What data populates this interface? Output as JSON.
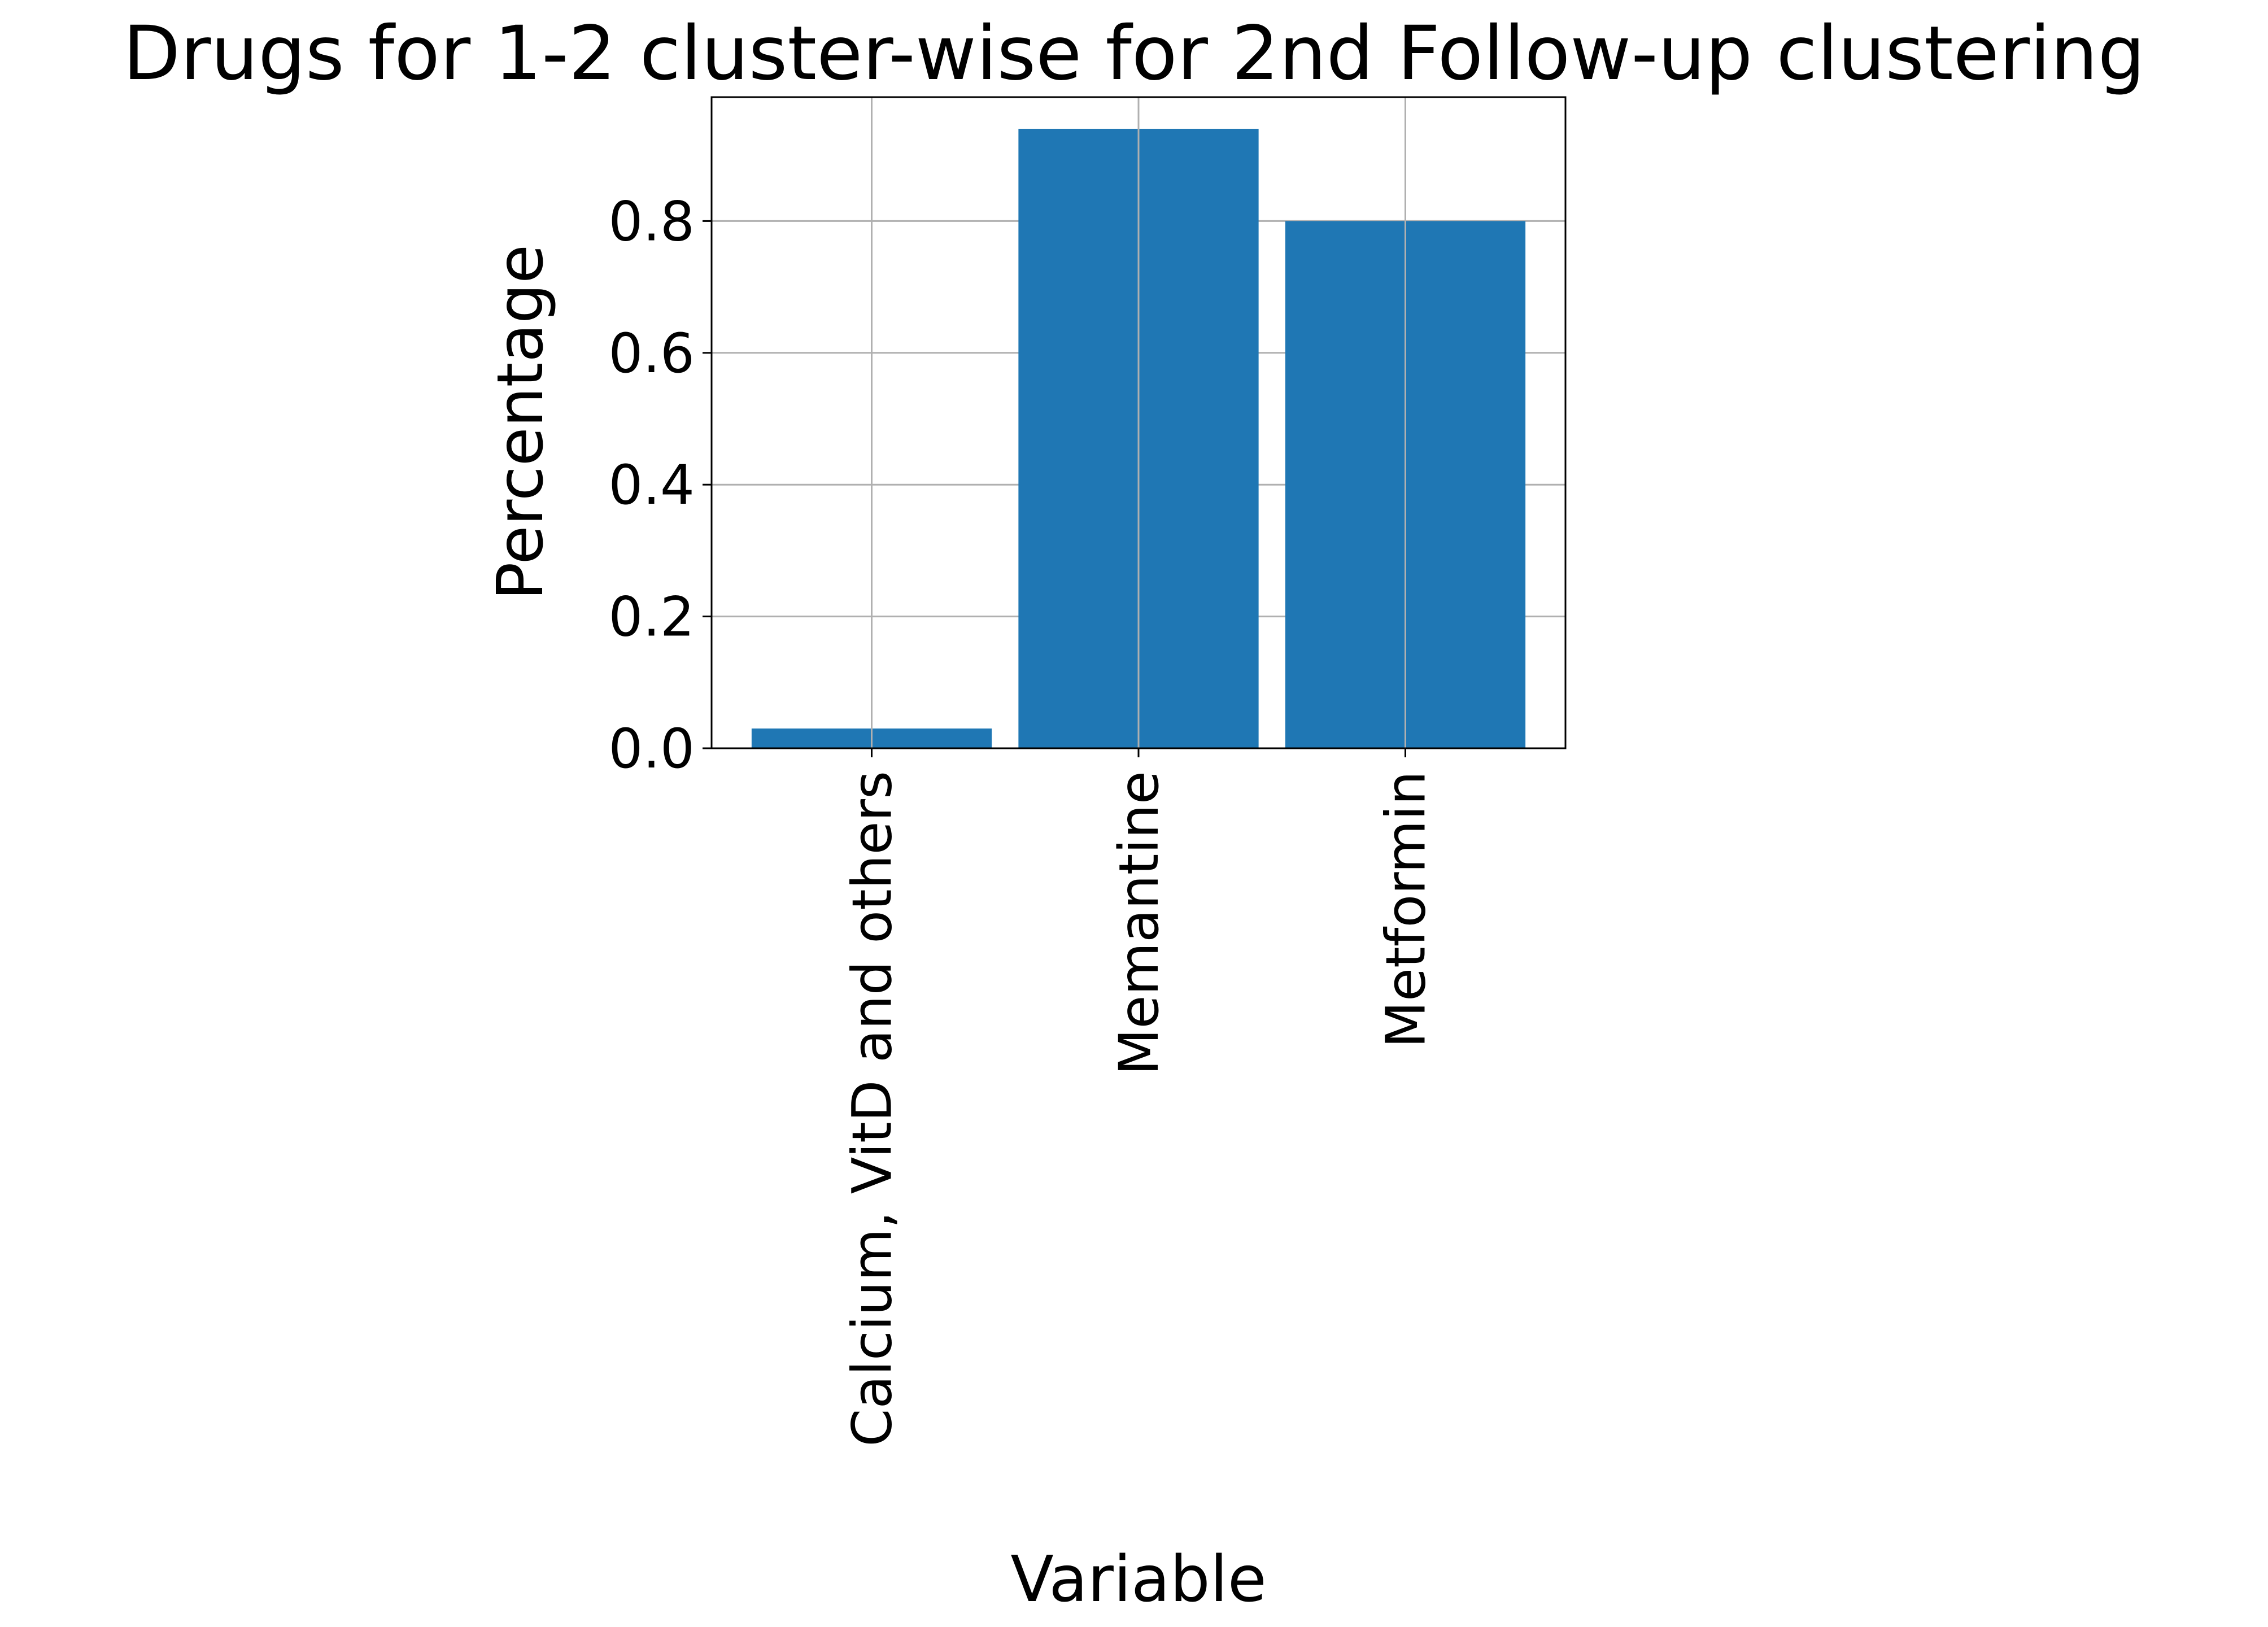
{
  "chart_data": {
    "type": "bar",
    "title": "Drugs for 1-2 cluster-wise for 2nd Follow-up clustering",
    "xlabel": "Variable",
    "ylabel": "Percentage",
    "categories": [
      "Calcium, VitD and others",
      "Memantine",
      "Metformin"
    ],
    "values": [
      0.03,
      0.94,
      0.8
    ],
    "ylim": [
      0,
      0.988
    ],
    "yticks": [
      0.0,
      0.2,
      0.4,
      0.6,
      0.8
    ],
    "ytick_labels": [
      "0.0",
      "0.2",
      "0.4",
      "0.6",
      "0.8"
    ],
    "grid": true,
    "bar_color": "#1f77b4",
    "grid_color": "#b0b0b0"
  }
}
